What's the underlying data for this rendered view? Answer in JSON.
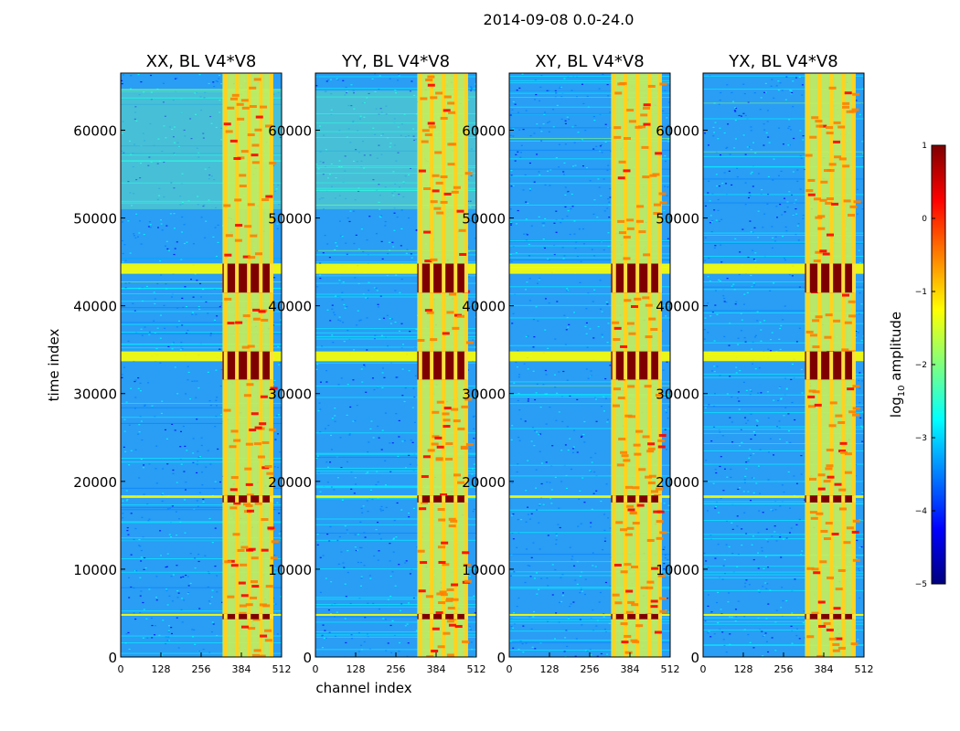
{
  "figure": {
    "suptitle": "2014-09-08 0.0-24.0"
  },
  "chart_data": [
    {
      "type": "heatmap",
      "title": "XX, BL V4*V8",
      "xlabel": "",
      "ylabel": "time index",
      "xlim": [
        0,
        512
      ],
      "ylim": [
        0,
        66500
      ],
      "xticks": [
        0,
        128,
        256,
        384,
        512
      ],
      "yticks": [
        0,
        10000,
        20000,
        30000,
        40000,
        50000,
        60000
      ],
      "value_scale": "log10 amplitude",
      "zlim": [
        -5,
        1
      ],
      "strong_rfi_time_bands": [
        [
          4300,
          4900
        ],
        [
          17600,
          18400
        ],
        [
          31600,
          34800
        ],
        [
          41500,
          44800
        ]
      ],
      "rfi_channel_range": [
        324,
        480
      ]
    },
    {
      "type": "heatmap",
      "title": "YY, BL V4*V8",
      "xlabel": "channel index",
      "ylabel": "",
      "xlim": [
        0,
        512
      ],
      "ylim": [
        0,
        66500
      ],
      "xticks": [
        0,
        128,
        256,
        384,
        512
      ],
      "yticks": [
        0,
        10000,
        20000,
        30000,
        40000,
        50000,
        60000
      ],
      "value_scale": "log10 amplitude",
      "zlim": [
        -5,
        1
      ],
      "strong_rfi_time_bands": [
        [
          4300,
          4900
        ],
        [
          17600,
          18400
        ],
        [
          31600,
          34800
        ],
        [
          41500,
          44800
        ]
      ],
      "rfi_channel_range": [
        324,
        480
      ]
    },
    {
      "type": "heatmap",
      "title": "XY, BL V4*V8",
      "xlabel": "",
      "ylabel": "",
      "xlim": [
        0,
        512
      ],
      "ylim": [
        0,
        66500
      ],
      "xticks": [
        0,
        128,
        256,
        384,
        512
      ],
      "yticks": [
        0,
        10000,
        20000,
        30000,
        40000,
        50000,
        60000
      ],
      "value_scale": "log10 amplitude",
      "zlim": [
        -5,
        1
      ],
      "strong_rfi_time_bands": [
        [
          4300,
          4900
        ],
        [
          17600,
          18400
        ],
        [
          31600,
          34800
        ],
        [
          41500,
          44800
        ]
      ],
      "rfi_channel_range": [
        324,
        480
      ]
    },
    {
      "type": "heatmap",
      "title": "YX, BL V4*V8",
      "xlabel": "",
      "ylabel": "",
      "xlim": [
        0,
        512
      ],
      "ylim": [
        0,
        66500
      ],
      "xticks": [
        0,
        128,
        256,
        384,
        512
      ],
      "yticks": [
        0,
        10000,
        20000,
        30000,
        40000,
        50000,
        60000
      ],
      "value_scale": "log10 amplitude",
      "zlim": [
        -5,
        1
      ],
      "strong_rfi_time_bands": [
        [
          4300,
          4900
        ],
        [
          17600,
          18400
        ],
        [
          31600,
          34800
        ],
        [
          41500,
          44800
        ]
      ],
      "rfi_channel_range": [
        324,
        480
      ]
    }
  ],
  "colorbar": {
    "label_base": "log",
    "label_sub": "10",
    "label_rest": " amplitude",
    "range": [
      -5,
      1
    ],
    "ticks": [
      "1",
      "0",
      "−1",
      "−2",
      "−3",
      "−4",
      "−5"
    ],
    "colormap": [
      "#00007f",
      "#0000ff",
      "#007fff",
      "#00ffff",
      "#7fff7f",
      "#ffff00",
      "#ff7f00",
      "#ff0000",
      "#7f0000"
    ]
  }
}
